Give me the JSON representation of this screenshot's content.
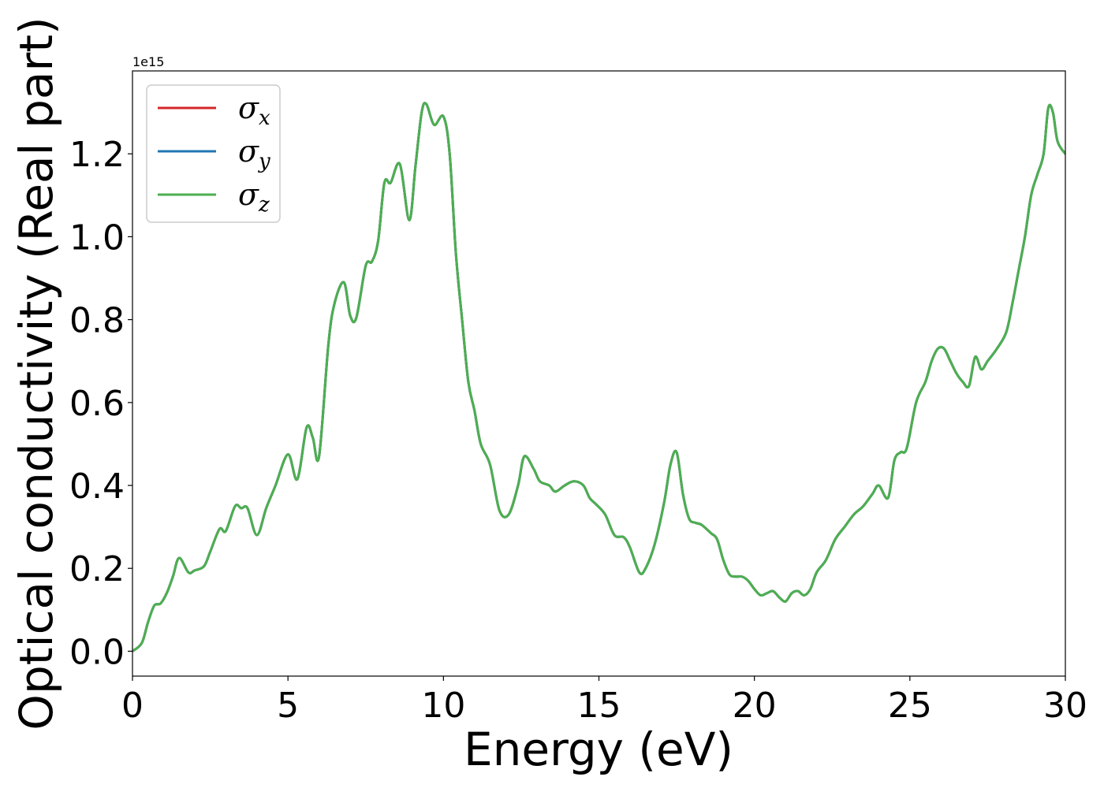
{
  "chart_data": {
    "type": "line",
    "xlabel": "Energy (eV)",
    "ylabel": "Optical conductivity (Real part)",
    "y_offset_text": "1e15",
    "xlim": [
      0,
      30
    ],
    "ylim": [
      -0.06,
      1.4
    ],
    "xticks": [
      0,
      5,
      10,
      15,
      20,
      25,
      30
    ],
    "xtick_labels": [
      "0",
      "5",
      "10",
      "15",
      "20",
      "25",
      "30"
    ],
    "yticks": [
      0.0,
      0.2,
      0.4,
      0.6,
      0.8,
      1.0,
      1.2
    ],
    "ytick_labels": [
      "0.0",
      "0.2",
      "0.4",
      "0.6",
      "0.8",
      "1.0",
      "1.2"
    ],
    "grid": false,
    "legend": {
      "placement": "top-left",
      "entries": [
        {
          "symbol": "σ",
          "subscript": "x",
          "color": "#d62728"
        },
        {
          "symbol": "σ",
          "subscript": "y",
          "color": "#1f77b4"
        },
        {
          "symbol": "σ",
          "subscript": "z",
          "color": "#4caf50"
        }
      ]
    },
    "x": [
      0,
      0.3,
      0.5,
      0.7,
      0.9,
      1.1,
      1.3,
      1.5,
      1.8,
      2.0,
      2.3,
      2.5,
      2.8,
      3.0,
      3.3,
      3.5,
      3.7,
      4.0,
      4.3,
      4.6,
      5.0,
      5.3,
      5.6,
      5.8,
      6.0,
      6.3,
      6.5,
      6.8,
      7.0,
      7.2,
      7.5,
      7.7,
      7.9,
      8.1,
      8.3,
      8.6,
      8.9,
      9.1,
      9.3,
      9.45,
      9.7,
      10.0,
      10.2,
      10.4,
      10.6,
      10.8,
      11.0,
      11.2,
      11.5,
      11.8,
      12.1,
      12.4,
      12.6,
      12.9,
      13.1,
      13.4,
      13.6,
      13.9,
      14.2,
      14.5,
      14.7,
      14.9,
      15.2,
      15.5,
      15.8,
      16.0,
      16.3,
      16.5,
      16.8,
      17.1,
      17.3,
      17.5,
      17.7,
      17.9,
      18.1,
      18.3,
      18.6,
      18.8,
      19.0,
      19.2,
      19.4,
      19.6,
      19.8,
      20.0,
      20.2,
      20.4,
      20.6,
      20.8,
      21.0,
      21.2,
      21.4,
      21.6,
      21.8,
      22.0,
      22.3,
      22.6,
      22.9,
      23.2,
      23.5,
      23.8,
      24.0,
      24.3,
      24.5,
      24.7,
      24.9,
      25.2,
      25.5,
      25.7,
      25.9,
      26.1,
      26.3,
      26.5,
      26.7,
      26.9,
      27.1,
      27.3,
      27.5,
      27.8,
      28.1,
      28.3,
      28.5,
      28.7,
      28.9,
      29.1,
      29.3,
      29.45,
      29.6,
      29.75,
      30.0
    ],
    "series": [
      {
        "name": "σx",
        "color": "#d62728",
        "values": [
          0.0,
          0.02,
          0.07,
          0.11,
          0.115,
          0.14,
          0.18,
          0.225,
          0.19,
          0.195,
          0.205,
          0.24,
          0.295,
          0.29,
          0.35,
          0.345,
          0.345,
          0.28,
          0.345,
          0.4,
          0.475,
          0.415,
          0.54,
          0.515,
          0.47,
          0.74,
          0.84,
          0.89,
          0.81,
          0.805,
          0.93,
          0.94,
          0.99,
          1.13,
          1.13,
          1.175,
          1.04,
          1.17,
          1.3,
          1.32,
          1.27,
          1.29,
          1.2,
          0.96,
          0.8,
          0.65,
          0.58,
          0.5,
          0.45,
          0.34,
          0.33,
          0.4,
          0.47,
          0.44,
          0.41,
          0.4,
          0.385,
          0.4,
          0.41,
          0.4,
          0.37,
          0.355,
          0.33,
          0.28,
          0.275,
          0.25,
          0.19,
          0.2,
          0.26,
          0.36,
          0.45,
          0.48,
          0.38,
          0.32,
          0.31,
          0.305,
          0.285,
          0.27,
          0.22,
          0.185,
          0.18,
          0.18,
          0.17,
          0.15,
          0.135,
          0.14,
          0.145,
          0.13,
          0.12,
          0.14,
          0.145,
          0.135,
          0.15,
          0.19,
          0.22,
          0.27,
          0.3,
          0.33,
          0.35,
          0.38,
          0.4,
          0.37,
          0.46,
          0.48,
          0.49,
          0.6,
          0.65,
          0.7,
          0.73,
          0.73,
          0.7,
          0.67,
          0.65,
          0.64,
          0.71,
          0.68,
          0.7,
          0.73,
          0.77,
          0.84,
          0.92,
          1.0,
          1.1,
          1.15,
          1.2,
          1.31,
          1.3,
          1.23,
          1.2
        ]
      },
      {
        "name": "σy",
        "color": "#1f77b4",
        "values": [
          0.0,
          0.02,
          0.07,
          0.11,
          0.115,
          0.14,
          0.18,
          0.225,
          0.19,
          0.195,
          0.205,
          0.24,
          0.295,
          0.29,
          0.35,
          0.345,
          0.345,
          0.28,
          0.345,
          0.4,
          0.475,
          0.415,
          0.54,
          0.515,
          0.47,
          0.74,
          0.84,
          0.89,
          0.81,
          0.805,
          0.93,
          0.94,
          0.99,
          1.13,
          1.13,
          1.175,
          1.04,
          1.17,
          1.3,
          1.32,
          1.27,
          1.29,
          1.2,
          0.96,
          0.8,
          0.65,
          0.58,
          0.5,
          0.45,
          0.34,
          0.33,
          0.4,
          0.47,
          0.44,
          0.41,
          0.4,
          0.385,
          0.4,
          0.41,
          0.4,
          0.37,
          0.355,
          0.33,
          0.28,
          0.275,
          0.25,
          0.19,
          0.2,
          0.26,
          0.36,
          0.45,
          0.48,
          0.38,
          0.32,
          0.31,
          0.305,
          0.285,
          0.27,
          0.22,
          0.185,
          0.18,
          0.18,
          0.17,
          0.15,
          0.135,
          0.14,
          0.145,
          0.13,
          0.12,
          0.14,
          0.145,
          0.135,
          0.15,
          0.19,
          0.22,
          0.27,
          0.3,
          0.33,
          0.35,
          0.38,
          0.4,
          0.37,
          0.46,
          0.48,
          0.49,
          0.6,
          0.65,
          0.7,
          0.73,
          0.73,
          0.7,
          0.67,
          0.65,
          0.64,
          0.71,
          0.68,
          0.7,
          0.73,
          0.77,
          0.84,
          0.92,
          1.0,
          1.1,
          1.15,
          1.2,
          1.31,
          1.3,
          1.23,
          1.2
        ]
      },
      {
        "name": "σz",
        "color": "#4caf50",
        "values": [
          0.0,
          0.02,
          0.07,
          0.11,
          0.115,
          0.14,
          0.18,
          0.225,
          0.19,
          0.195,
          0.205,
          0.24,
          0.295,
          0.29,
          0.35,
          0.345,
          0.345,
          0.28,
          0.345,
          0.4,
          0.475,
          0.415,
          0.54,
          0.515,
          0.47,
          0.74,
          0.84,
          0.89,
          0.81,
          0.805,
          0.93,
          0.94,
          0.99,
          1.13,
          1.13,
          1.175,
          1.04,
          1.17,
          1.3,
          1.32,
          1.27,
          1.29,
          1.2,
          0.96,
          0.8,
          0.65,
          0.58,
          0.5,
          0.45,
          0.34,
          0.33,
          0.4,
          0.47,
          0.44,
          0.41,
          0.4,
          0.385,
          0.4,
          0.41,
          0.4,
          0.37,
          0.355,
          0.33,
          0.28,
          0.275,
          0.25,
          0.19,
          0.2,
          0.26,
          0.36,
          0.45,
          0.48,
          0.38,
          0.32,
          0.31,
          0.305,
          0.285,
          0.27,
          0.22,
          0.185,
          0.18,
          0.18,
          0.17,
          0.15,
          0.135,
          0.14,
          0.145,
          0.13,
          0.12,
          0.14,
          0.145,
          0.135,
          0.15,
          0.19,
          0.22,
          0.27,
          0.3,
          0.33,
          0.35,
          0.38,
          0.4,
          0.37,
          0.46,
          0.48,
          0.49,
          0.6,
          0.65,
          0.7,
          0.73,
          0.73,
          0.7,
          0.67,
          0.65,
          0.64,
          0.71,
          0.68,
          0.7,
          0.73,
          0.77,
          0.84,
          0.92,
          1.0,
          1.1,
          1.15,
          1.2,
          1.31,
          1.3,
          1.23,
          1.2
        ]
      }
    ]
  }
}
